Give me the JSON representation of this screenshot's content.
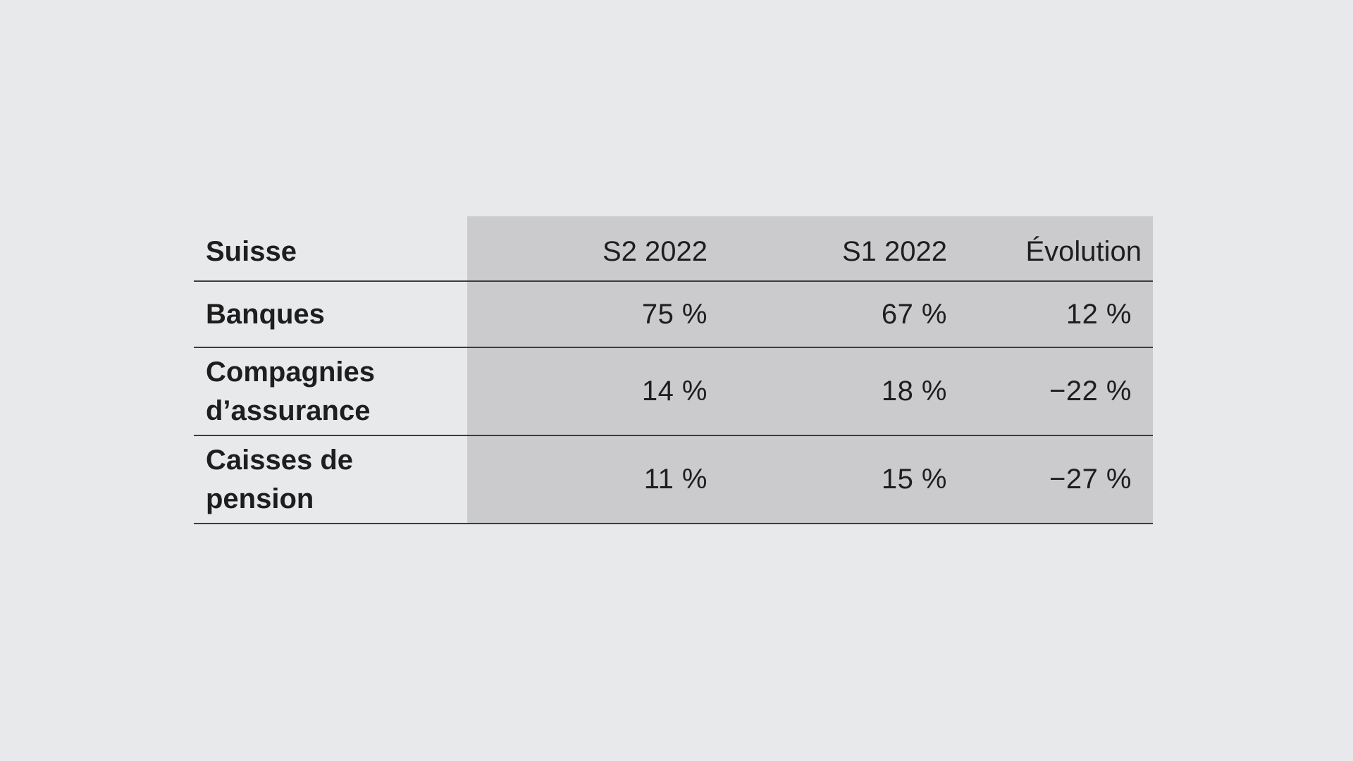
{
  "chart_data": {
    "type": "table",
    "title": "",
    "columns": [
      "Suisse",
      "S2 2022",
      "S1 2022",
      "Évolution"
    ],
    "rows": [
      {
        "label": "Banques",
        "values": [
          "75 %",
          "67 %",
          "12 %"
        ]
      },
      {
        "label": "Compagnies d’assurance",
        "values": [
          "14 %",
          "18 %",
          "−22 %"
        ]
      },
      {
        "label": "Caisses de pension",
        "values": [
          "11 %",
          "15 %",
          "−27 %"
        ]
      }
    ],
    "numeric": {
      "S2 2022": [
        75,
        14,
        11
      ],
      "S1 2022": [
        67,
        18,
        15
      ],
      "Évolution": [
        12,
        -22,
        -27
      ]
    }
  },
  "colors": {
    "background": "#e8e9eb",
    "shaded_columns": "#cbcbcd",
    "text": "#1e1e1e",
    "rule": "#3c3c3c"
  }
}
